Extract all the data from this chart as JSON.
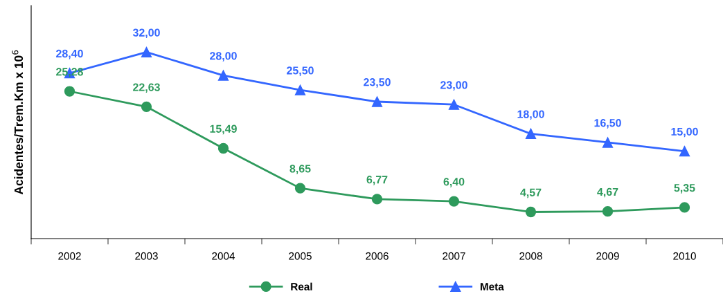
{
  "chart_data": {
    "type": "line",
    "ylabel": "Acidentes/Trem.Km x 10$^{6}$",
    "categories": [
      "2002",
      "2003",
      "2004",
      "2005",
      "2006",
      "2007",
      "2008",
      "2009",
      "2010"
    ],
    "series": [
      {
        "name": "Real",
        "color": "#2e9a5c",
        "marker": "circle",
        "values": [
          25.28,
          22.63,
          15.49,
          8.65,
          6.77,
          6.4,
          4.57,
          4.67,
          5.35
        ],
        "value_labels": [
          "25,28",
          "22,63",
          "15,49",
          "8,65",
          "6,77",
          "6,40",
          "4,57",
          "4,67",
          "5,35"
        ]
      },
      {
        "name": "Meta",
        "color": "#3366ff",
        "marker": "triangle",
        "values": [
          28.4,
          32.0,
          28.0,
          25.5,
          23.5,
          23.0,
          18.0,
          16.5,
          15.0
        ],
        "value_labels": [
          "28,40",
          "32,00",
          "28,00",
          "25,50",
          "23,50",
          "23,00",
          "18,00",
          "16,50",
          "15,00"
        ]
      }
    ],
    "grid": false,
    "legend": "bottom",
    "line_style": "solid"
  }
}
